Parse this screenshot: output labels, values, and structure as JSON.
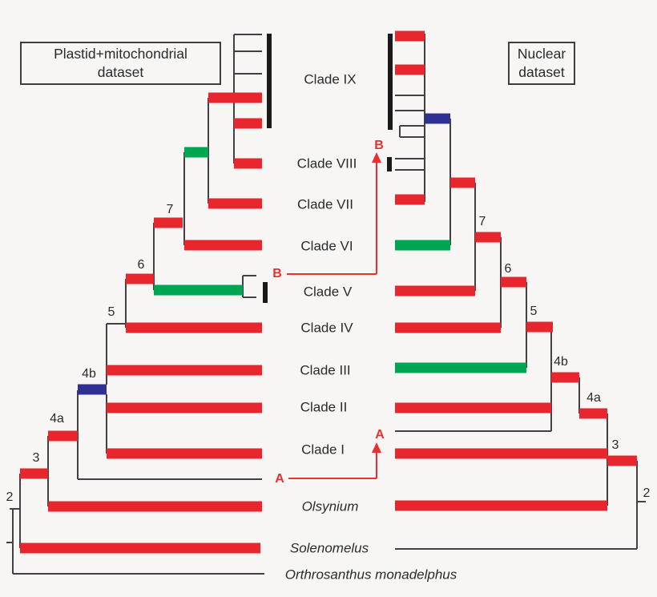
{
  "figure": {
    "left_dataset_box": {
      "line1": "Plastid+mitochondrial",
      "line2": "dataset"
    },
    "right_dataset_box": {
      "line1": "Nuclear",
      "line2": "dataset"
    },
    "clade_labels": [
      {
        "text": "Clade IX",
        "italic": false
      },
      {
        "text": "Clade VIII",
        "italic": false
      },
      {
        "text": "Clade VII",
        "italic": false
      },
      {
        "text": "Clade VI",
        "italic": false
      },
      {
        "text": "Clade V",
        "italic": false
      },
      {
        "text": "Clade IV",
        "italic": false
      },
      {
        "text": "Clade III",
        "italic": false
      },
      {
        "text": "Clade II",
        "italic": false
      },
      {
        "text": "Clade I",
        "italic": false
      },
      {
        "text": "Olsynium",
        "italic": true
      },
      {
        "text": "Solenomelus",
        "italic": true
      },
      {
        "text": "Orthrosanthus monadelphus",
        "italic": true
      }
    ],
    "left_tree_node_labels": [
      "7",
      "6",
      "5",
      "4b",
      "4a",
      "3",
      "2"
    ],
    "right_tree_node_labels": [
      "7",
      "6",
      "5",
      "4b",
      "4a",
      "3",
      "2"
    ],
    "annotations": {
      "a": "A",
      "b": "B"
    }
  },
  "colors": {
    "red": "#e8262d",
    "green": "#00a551",
    "blue": "#2e3192",
    "line": "#414042",
    "bracket": "#1a1a1a",
    "text": "#2b2b2b",
    "annotation": "#e8312f",
    "background": "#f7f6f5"
  }
}
